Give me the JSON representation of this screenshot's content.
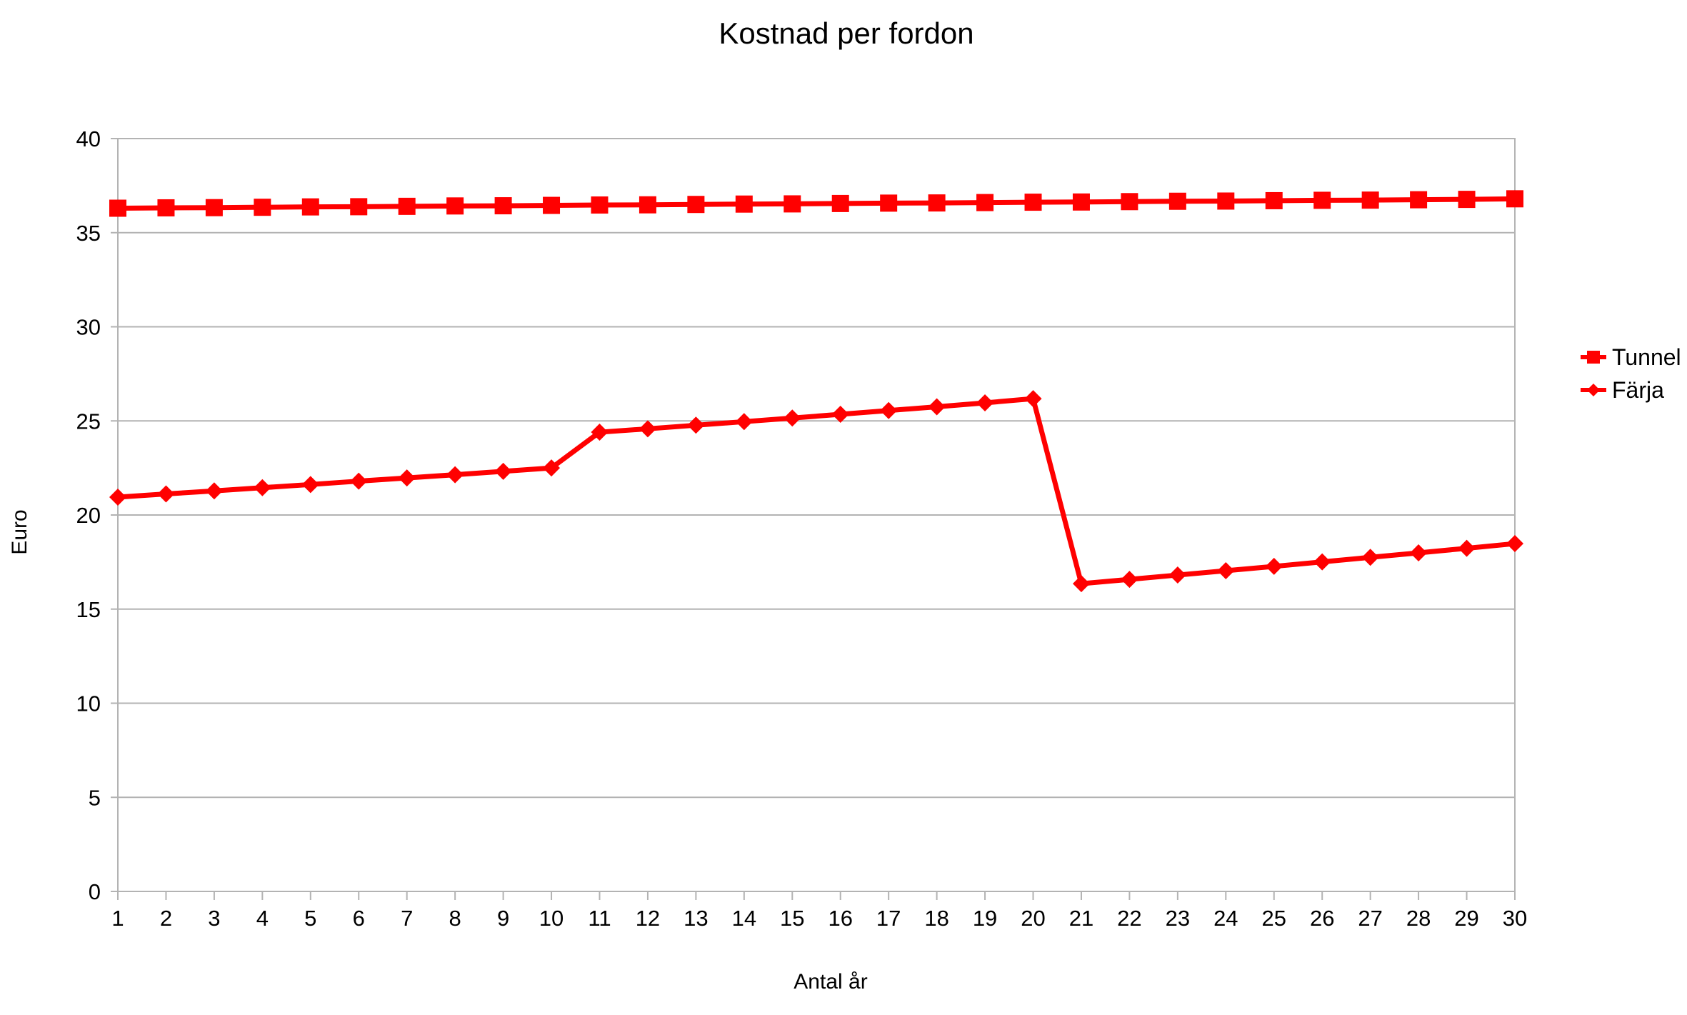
{
  "chart_data": {
    "type": "line",
    "title": "Kostnad per fordon",
    "xlabel": "Antal år",
    "ylabel": "Euro",
    "ylim": [
      0,
      40
    ],
    "yticks": [
      0,
      5,
      10,
      15,
      20,
      25,
      30,
      35,
      40
    ],
    "grid": true,
    "legend_position": "right",
    "categories": [
      "1",
      "2",
      "3",
      "4",
      "5",
      "6",
      "7",
      "8",
      "9",
      "10",
      "11",
      "12",
      "13",
      "14",
      "15",
      "16",
      "17",
      "18",
      "19",
      "20",
      "21",
      "22",
      "23",
      "24",
      "25",
      "26",
      "27",
      "28",
      "29",
      "30"
    ],
    "series": [
      {
        "name": "Tunnel",
        "marker": "square",
        "color": "#ff0000",
        "values": [
          36.3,
          36.32,
          36.33,
          36.35,
          36.37,
          36.38,
          36.4,
          36.42,
          36.43,
          36.45,
          36.47,
          36.48,
          36.5,
          36.52,
          36.53,
          36.55,
          36.57,
          36.58,
          36.6,
          36.62,
          36.63,
          36.65,
          36.67,
          36.68,
          36.7,
          36.72,
          36.73,
          36.75,
          36.77,
          36.8
        ]
      },
      {
        "name": "Färja",
        "marker": "diamond",
        "color": "#ff0000",
        "values": [
          20.95,
          21.12,
          21.28,
          21.45,
          21.62,
          21.8,
          21.97,
          22.14,
          22.32,
          22.5,
          24.4,
          24.58,
          24.77,
          24.96,
          25.15,
          25.35,
          25.55,
          25.75,
          25.96,
          26.18,
          16.35,
          16.58,
          16.81,
          17.04,
          17.27,
          17.51,
          17.75,
          17.99,
          18.23,
          18.48
        ]
      }
    ]
  }
}
